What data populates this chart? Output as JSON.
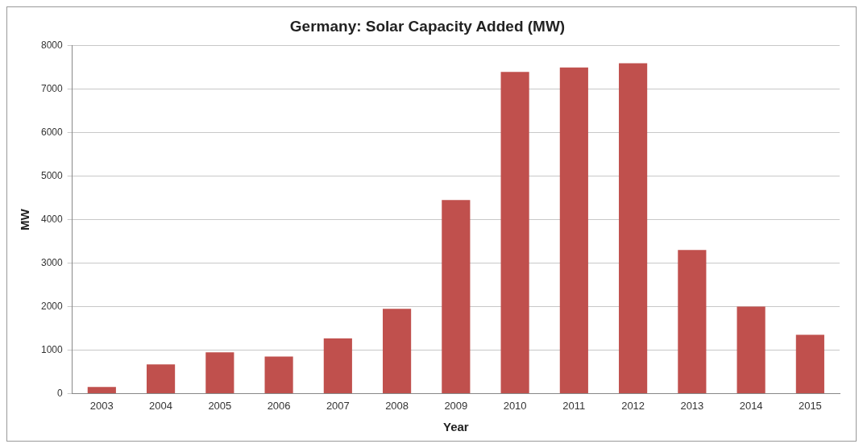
{
  "chart_data": {
    "type": "bar",
    "title": "Germany: Solar Capacity Added (MW)",
    "xlabel": "Year",
    "ylabel": "MW",
    "categories": [
      "2003",
      "2004",
      "2005",
      "2006",
      "2007",
      "2008",
      "2009",
      "2010",
      "2011",
      "2012",
      "2013",
      "2014",
      "2015"
    ],
    "values": [
      150,
      670,
      950,
      850,
      1270,
      1950,
      4450,
      7400,
      7500,
      7600,
      3300,
      2000,
      1350
    ],
    "color": "#c0504d",
    "ylim": [
      0,
      8000
    ],
    "yticks": [
      0,
      1000,
      2000,
      3000,
      4000,
      5000,
      6000,
      7000,
      8000
    ],
    "grid": "y",
    "legend": false
  }
}
